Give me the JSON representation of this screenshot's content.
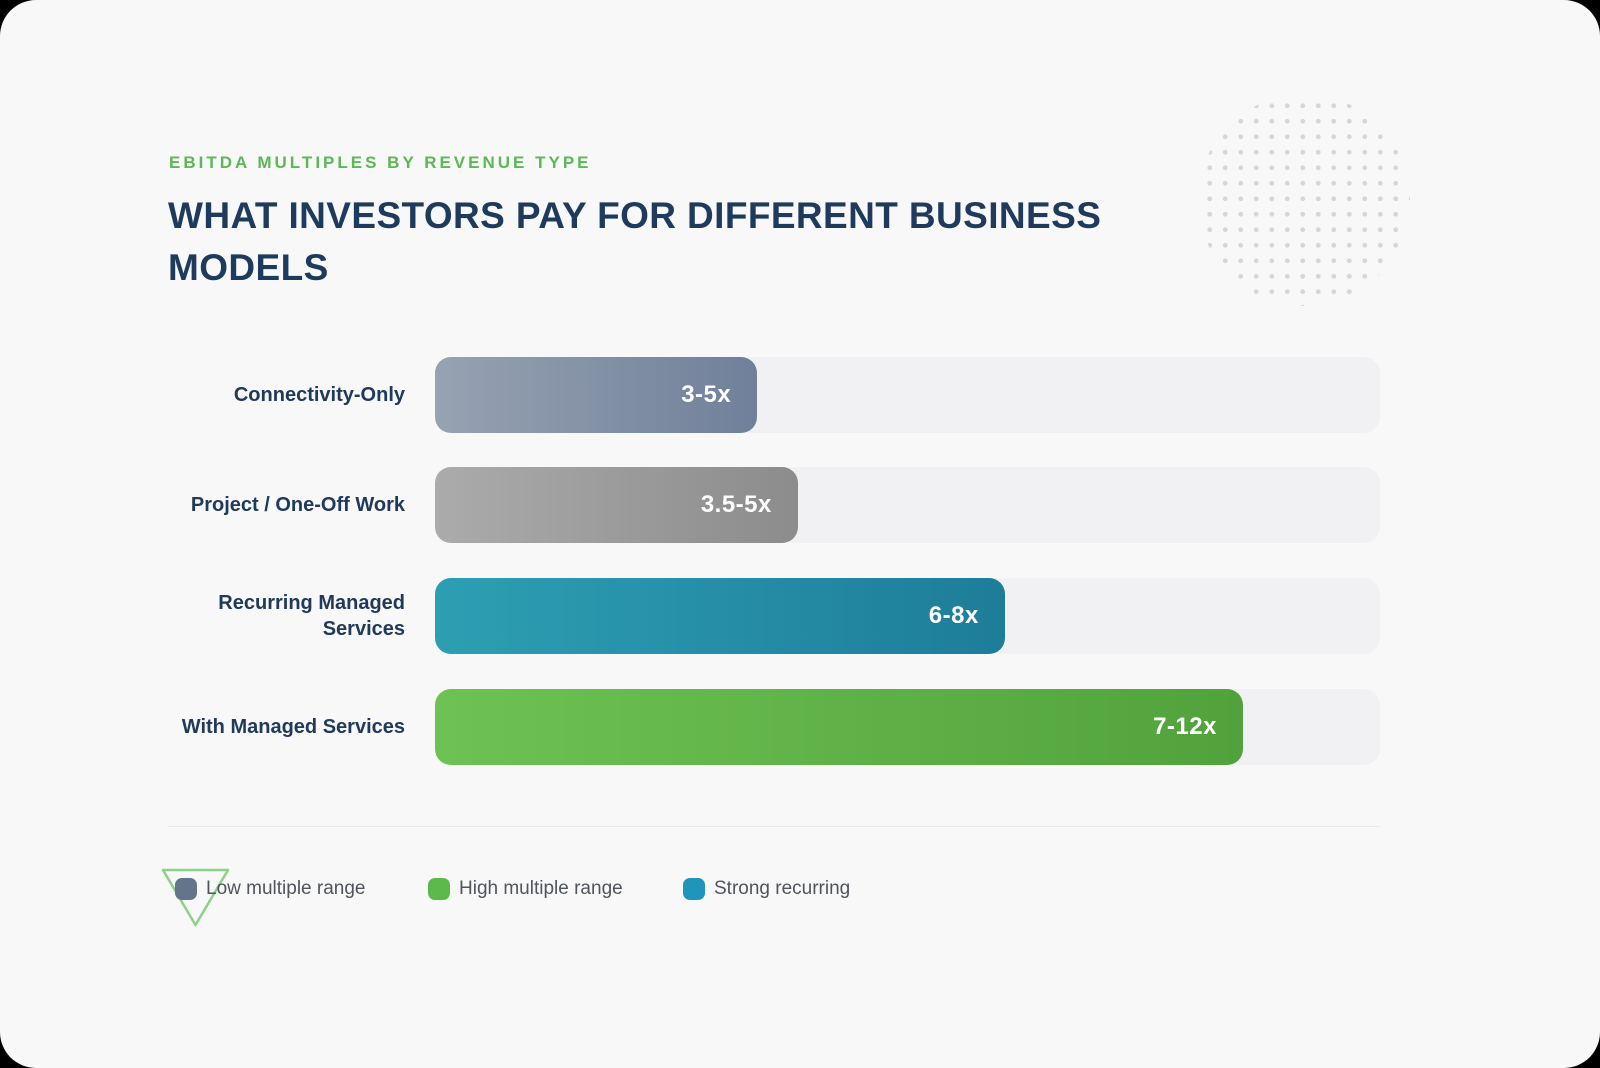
{
  "header": {
    "eyebrow": "EBITDA MULTIPLES BY REVENUE TYPE",
    "title_line1": "WHAT INVESTORS PAY FOR DIFFERENT BUSINESS",
    "title_line2": "MODELS"
  },
  "colors": {
    "accent_green": "#5bb854",
    "title_navy": "#1e3a5c",
    "card_background": "#f8f8f9",
    "track_background": "#f1f1f4",
    "triangle_outline": "#8ed188"
  },
  "chart_data": {
    "type": "bar",
    "orientation": "horizontal",
    "title": "WHAT INVESTORS PAY FOR DIFFERENT BUSINESS MODELS",
    "subtitle": "EBITDA MULTIPLES BY REVENUE TYPE",
    "x_axis": {
      "visible": false,
      "implied_range": [
        0,
        12
      ],
      "unit": "x EBITDA"
    },
    "grid": false,
    "categories": [
      "Connectivity-Only",
      "Project / One-Off Work",
      "Recurring Managed Services",
      "With Managed Services"
    ],
    "series": [
      {
        "label": "Connectivity-Only",
        "low": 3,
        "high": 5,
        "value_label": "3-5x",
        "color_start": "#97a2b2",
        "color_end": "#70809a",
        "width_pct": 34.1
      },
      {
        "label": "Project / One-Off Work",
        "low": 3.5,
        "high": 5,
        "value_label": "3.5-5x",
        "color_start": "#ababab",
        "color_end": "#8c8c8c",
        "width_pct": 38.4
      },
      {
        "label": "Recurring Managed Services",
        "low": 6,
        "high": 8,
        "value_label": "6-8x",
        "color_start": "#2d9fb3",
        "color_end": "#1e7d99",
        "width_pct": 60.3
      },
      {
        "label": "With Managed Services",
        "low": 7,
        "high": 12,
        "value_label": "7-12x",
        "color_start": "#6ec253",
        "color_end": "#51a23c",
        "width_pct": 85.5
      }
    ],
    "legend_position": "bottom",
    "legend": [
      {
        "label": "Low multiple range",
        "color": "#64748b"
      },
      {
        "label": "High multiple range",
        "color": "#5cb94a"
      },
      {
        "label": "Strong recurring",
        "color": "#2095ba"
      }
    ]
  }
}
